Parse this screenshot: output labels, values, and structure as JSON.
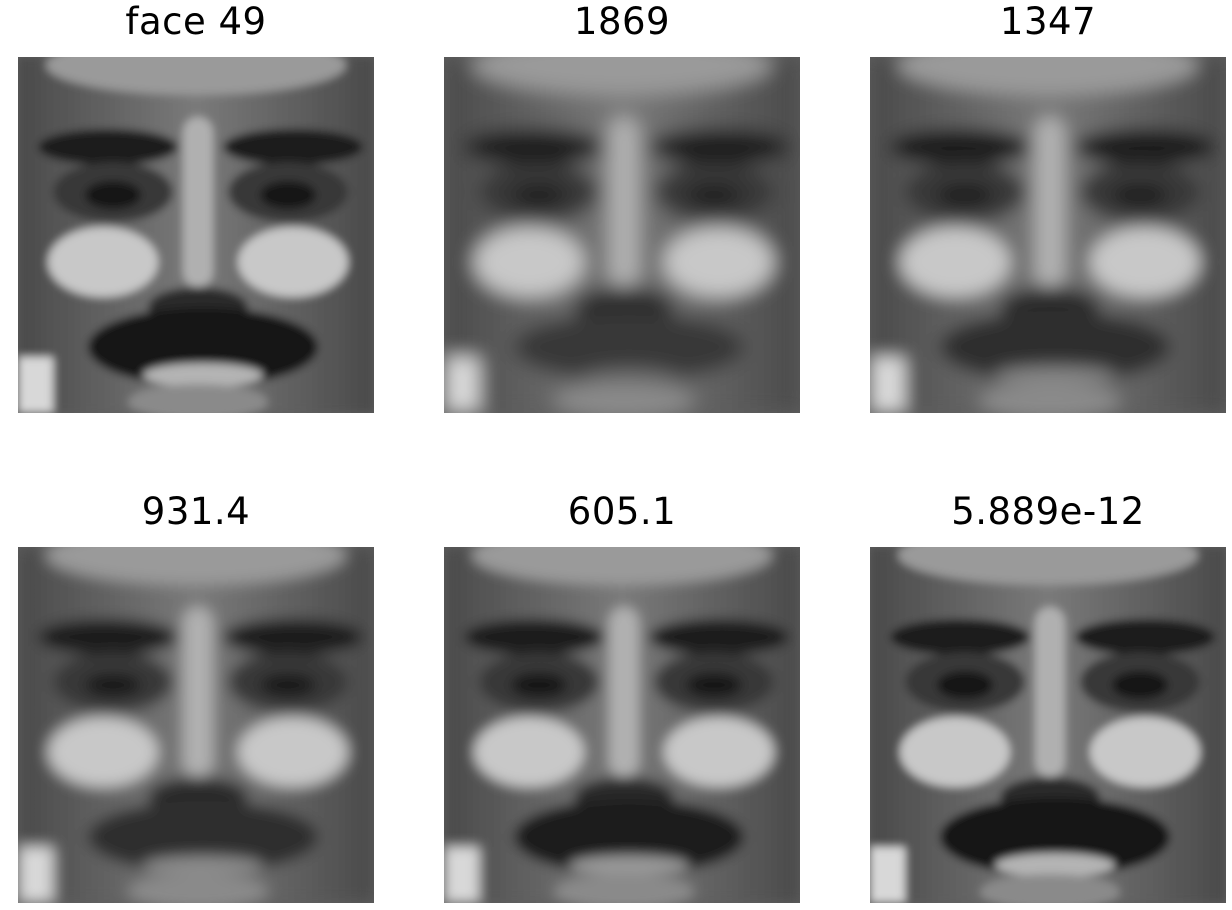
{
  "panels": [
    {
      "title": "face 49",
      "mustache": 0.95,
      "teeth": 1.0,
      "eye_open": 1.0,
      "blur": 0.4
    },
    {
      "title": "1869",
      "mustache": 0.45,
      "teeth": 0.0,
      "eye_open": 0.3,
      "blur": 2.2
    },
    {
      "title": "1347",
      "mustache": 0.6,
      "teeth": 0.2,
      "eye_open": 0.35,
      "blur": 1.8
    },
    {
      "title": "931.4",
      "mustache": 0.6,
      "teeth": 0.3,
      "eye_open": 0.55,
      "blur": 1.4
    },
    {
      "title": "605.1",
      "mustache": 0.8,
      "teeth": 0.5,
      "eye_open": 0.75,
      "blur": 1.0
    },
    {
      "title": "5.889e-12",
      "mustache": 0.95,
      "teeth": 1.0,
      "eye_open": 1.0,
      "blur": 0.4
    }
  ]
}
